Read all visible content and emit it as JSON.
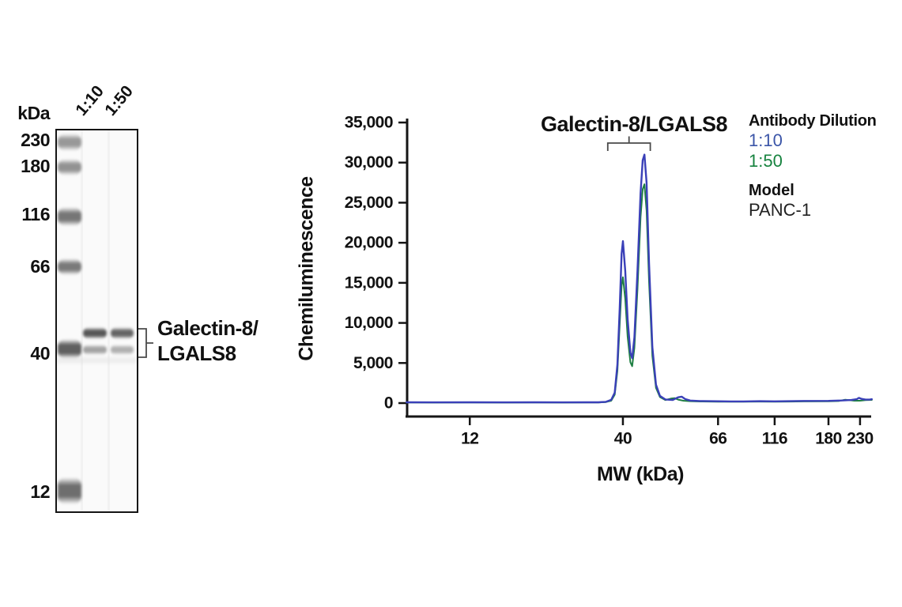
{
  "blot": {
    "kda_header": "kDa",
    "ladder_labels": [
      "230",
      "180",
      "116",
      "66",
      "40",
      "12"
    ],
    "lane_labels": [
      "1:10",
      "1:50"
    ],
    "annotation": {
      "line1": "Galectin-8/",
      "line2": "LGALS8"
    }
  },
  "chart_data": {
    "type": "line",
    "title": "Galectin-8/LGALS8",
    "xlabel": "MW (kDa)",
    "ylabel": "Chemiluminescence",
    "grid": "off",
    "x_axis": {
      "scale": "nonlinear-molecular-weight",
      "ticks": [
        {
          "label": "12",
          "kda": 12,
          "pos": 0.135
        },
        {
          "label": "40",
          "kda": 40,
          "pos": 0.465
        },
        {
          "label": "66",
          "kda": 66,
          "pos": 0.67
        },
        {
          "label": "116",
          "kda": 116,
          "pos": 0.792
        },
        {
          "label": "180",
          "kda": 180,
          "pos": 0.908
        },
        {
          "label": "230",
          "kda": 230,
          "pos": 0.976
        }
      ]
    },
    "y_axis": {
      "min": 0,
      "max": 35000,
      "ticks": [
        {
          "value": 0,
          "label": "0"
        },
        {
          "value": 5000,
          "label": "5,000"
        },
        {
          "value": 10000,
          "label": "10,000"
        },
        {
          "value": 15000,
          "label": "15,000"
        },
        {
          "value": 20000,
          "label": "20,000"
        },
        {
          "value": 25000,
          "label": "25,000"
        },
        {
          "value": 30000,
          "label": "30,000"
        },
        {
          "value": 35000,
          "label": "35,000"
        }
      ]
    },
    "legend": {
      "position": "top-right",
      "title": "Antibody Dilution",
      "entries": [
        {
          "label": "1:10",
          "color": "#3b55a8"
        },
        {
          "label": "1:50",
          "color": "#17833f"
        }
      ],
      "model_title": "Model",
      "model_value": "PANC-1"
    },
    "peak_bracket": {
      "from_kda": 35.5,
      "to_kda": 46.2
    },
    "series": [
      {
        "name": "1:50",
        "color": "#1e7f42",
        "points": [
          [
            7.3,
            70
          ],
          [
            9,
            60
          ],
          [
            12,
            68
          ],
          [
            16,
            60
          ],
          [
            20,
            68
          ],
          [
            25,
            62
          ],
          [
            30,
            68
          ],
          [
            33,
            75
          ],
          [
            35,
            125
          ],
          [
            36.5,
            300
          ],
          [
            37.5,
            1050
          ],
          [
            38.3,
            4000
          ],
          [
            39,
            9800
          ],
          [
            39.6,
            14600
          ],
          [
            40,
            15700
          ],
          [
            40.5,
            13000
          ],
          [
            41,
            8300
          ],
          [
            41.6,
            5100
          ],
          [
            42,
            4600
          ],
          [
            42.5,
            6900
          ],
          [
            43.2,
            14200
          ],
          [
            43.9,
            23200
          ],
          [
            44.4,
            26700
          ],
          [
            44.8,
            27300
          ],
          [
            45.3,
            24000
          ],
          [
            45.9,
            15200
          ],
          [
            46.7,
            5900
          ],
          [
            47.6,
            1900
          ],
          [
            48.6,
            750
          ],
          [
            50,
            380
          ],
          [
            51.5,
            560
          ],
          [
            52.5,
            620
          ],
          [
            53.5,
            430
          ],
          [
            55,
            300
          ],
          [
            57,
            240
          ],
          [
            60,
            200
          ],
          [
            66,
            180
          ],
          [
            75,
            165
          ],
          [
            85,
            165
          ],
          [
            100,
            185
          ],
          [
            116,
            175
          ],
          [
            130,
            185
          ],
          [
            150,
            205
          ],
          [
            180,
            215
          ],
          [
            195,
            260
          ],
          [
            205,
            420
          ],
          [
            212,
            360
          ],
          [
            220,
            300
          ],
          [
            230,
            300
          ],
          [
            240,
            360
          ],
          [
            252,
            390
          ]
        ]
      },
      {
        "name": "1:10",
        "color": "#3a40b8",
        "points": [
          [
            7.3,
            100
          ],
          [
            9,
            90
          ],
          [
            12,
            95
          ],
          [
            16,
            85
          ],
          [
            20,
            95
          ],
          [
            25,
            90
          ],
          [
            30,
            95
          ],
          [
            33,
            100
          ],
          [
            35,
            160
          ],
          [
            36.5,
            400
          ],
          [
            37.5,
            1300
          ],
          [
            38.3,
            4800
          ],
          [
            39,
            11800
          ],
          [
            39.6,
            18600
          ],
          [
            40,
            20200
          ],
          [
            40.5,
            16500
          ],
          [
            41,
            10500
          ],
          [
            41.6,
            6300
          ],
          [
            42,
            5600
          ],
          [
            42.5,
            8200
          ],
          [
            43.2,
            16500
          ],
          [
            43.9,
            26200
          ],
          [
            44.4,
            30300
          ],
          [
            44.8,
            31000
          ],
          [
            45.3,
            27500
          ],
          [
            45.9,
            17500
          ],
          [
            46.7,
            7000
          ],
          [
            47.6,
            2300
          ],
          [
            48.6,
            900
          ],
          [
            50,
            450
          ],
          [
            52,
            380
          ],
          [
            53.5,
            720
          ],
          [
            54.5,
            800
          ],
          [
            55.5,
            500
          ],
          [
            57,
            320
          ],
          [
            60,
            260
          ],
          [
            66,
            230
          ],
          [
            75,
            210
          ],
          [
            85,
            210
          ],
          [
            100,
            240
          ],
          [
            116,
            220
          ],
          [
            130,
            240
          ],
          [
            150,
            270
          ],
          [
            180,
            280
          ],
          [
            200,
            330
          ],
          [
            215,
            380
          ],
          [
            224,
            480
          ],
          [
            228,
            650
          ],
          [
            233,
            520
          ],
          [
            240,
            430
          ],
          [
            248,
            430
          ],
          [
            252,
            480
          ]
        ]
      }
    ]
  }
}
